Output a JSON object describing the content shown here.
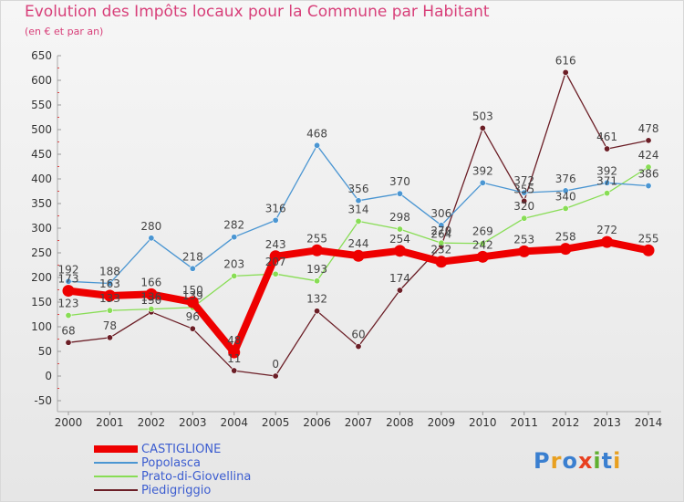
{
  "title": "Evolution des Impôts locaux pour la Commune par Habitant",
  "subtitle": "(en € et par an)",
  "logo_text": "Proxiti",
  "colors": {
    "title": "#d8407a",
    "legend_text": "#3c5dd0"
  },
  "chart_data": {
    "type": "line",
    "title": "Evolution des Impôts locaux pour la Commune par Habitant",
    "subtitle": "(en € et par an)",
    "xlabel": "",
    "ylabel": "",
    "categories": [
      "2000",
      "2001",
      "2002",
      "2003",
      "2004",
      "2005",
      "2006",
      "2007",
      "2008",
      "2009",
      "2010",
      "2011",
      "2012",
      "2013",
      "2014"
    ],
    "ylim": [
      -50,
      650
    ],
    "yticks": [
      "-50",
      "0",
      "50",
      "100",
      "150",
      "200",
      "250",
      "300",
      "350",
      "400",
      "450",
      "500",
      "550",
      "600",
      "650"
    ],
    "grid": false,
    "legend": "bottom-left",
    "series": [
      {
        "name": "CASTIGLIONE",
        "color": "#ee0000",
        "values": [
          173,
          163,
          166,
          150,
          48,
          243,
          255,
          244,
          254,
          232,
          242,
          253,
          258,
          272,
          255
        ],
        "labels": [
          "173",
          "163",
          "166",
          "150",
          "48",
          "243",
          "255",
          "244",
          "254",
          "232",
          "242",
          "253",
          "258",
          "272",
          "255"
        ]
      },
      {
        "name": "Popolasca",
        "color": "#4b96d2",
        "values": [
          192,
          188,
          280,
          218,
          282,
          316,
          468,
          356,
          370,
          306,
          392,
          372,
          376,
          392,
          386
        ],
        "labels": [
          "192",
          "188",
          "280",
          "218",
          "282",
          "316",
          "468",
          "356",
          "370",
          "306",
          "392",
          "372",
          "376",
          "392",
          "386"
        ]
      },
      {
        "name": "Prato-di-Giovellina",
        "color": "#88dd55",
        "values": [
          123,
          133,
          136,
          139,
          203,
          207,
          193,
          314,
          298,
          270,
          269,
          320,
          340,
          371,
          424
        ],
        "labels": [
          "123",
          "133",
          "136",
          "139",
          "203",
          "207",
          "193",
          "314",
          "298",
          "270",
          "269",
          "320",
          "340",
          "371",
          "424"
        ]
      },
      {
        "name": "Piedigriggio",
        "color": "#6b1e26",
        "values": [
          68,
          78,
          130,
          96,
          11,
          0,
          132,
          60,
          174,
          264,
          503,
          355,
          616,
          461,
          478
        ],
        "labels": [
          "68",
          "78",
          "130",
          "96",
          "11",
          "0",
          "132",
          "60",
          "174",
          "264",
          "503",
          "355",
          "616",
          "461",
          "478"
        ]
      }
    ]
  }
}
